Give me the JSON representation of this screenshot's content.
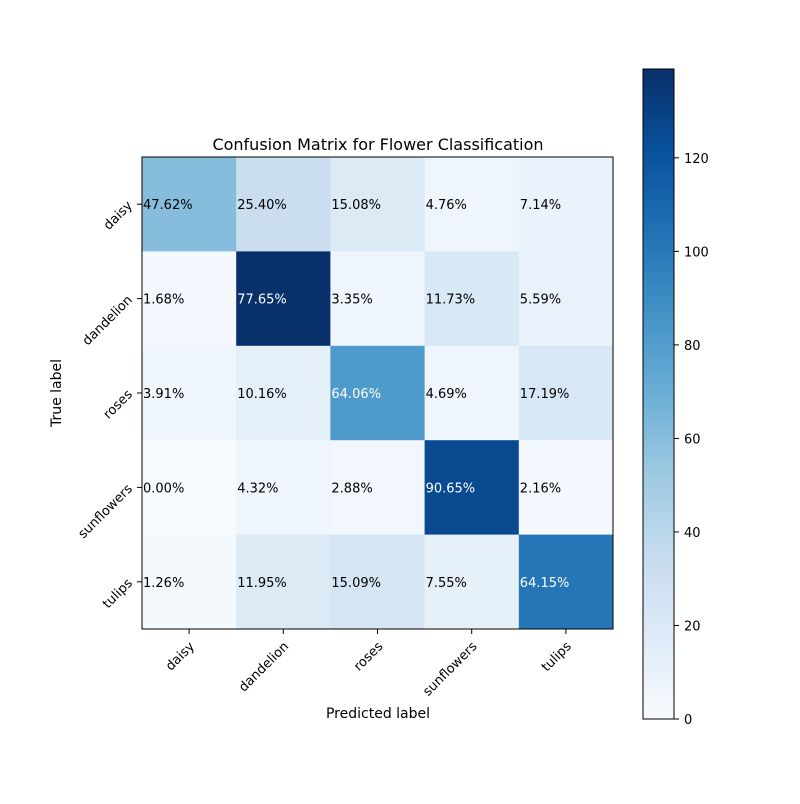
{
  "chart_data": {
    "type": "heatmap",
    "title": "Confusion Matrix for Flower Classification",
    "xlabel": "Predicted label",
    "ylabel": "True label",
    "x_categories": [
      "daisy",
      "dandelion",
      "roses",
      "sunflowers",
      "tulips"
    ],
    "y_categories": [
      "daisy",
      "dandelion",
      "roses",
      "sunflowers",
      "tulips"
    ],
    "counts": [
      [
        60,
        32,
        19,
        6,
        9
      ],
      [
        3,
        139,
        6,
        21,
        10
      ],
      [
        5,
        13,
        82,
        6,
        22
      ],
      [
        0,
        6,
        4,
        126,
        3
      ],
      [
        2,
        19,
        24,
        12,
        102
      ]
    ],
    "cell_labels": [
      [
        "47.62%",
        "25.40%",
        "15.08%",
        "4.76%",
        "7.14%"
      ],
      [
        "1.68%",
        "77.65%",
        "3.35%",
        "11.73%",
        "5.59%"
      ],
      [
        "3.91%",
        "10.16%",
        "64.06%",
        "4.69%",
        "17.19%"
      ],
      [
        "0.00%",
        "4.32%",
        "2.88%",
        "90.65%",
        "2.16%"
      ],
      [
        "1.26%",
        "11.95%",
        "15.09%",
        "7.55%",
        "64.15%"
      ]
    ],
    "colorbar": {
      "range": [
        0,
        139
      ],
      "ticks": [
        0,
        20,
        40,
        60,
        80,
        100,
        120
      ],
      "tick_labels": [
        "0",
        "20",
        "40",
        "60",
        "80",
        "100",
        "120"
      ]
    },
    "colormap": "Blues",
    "grid": false
  }
}
